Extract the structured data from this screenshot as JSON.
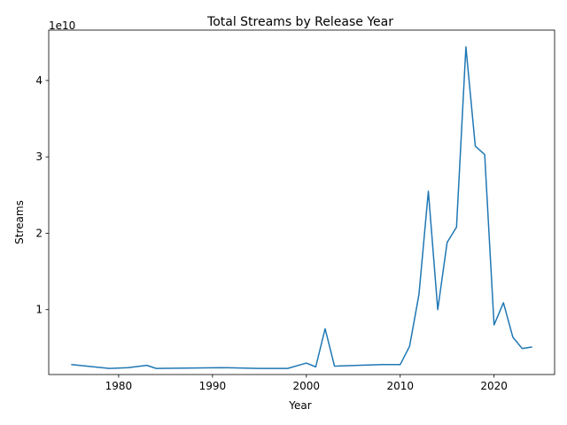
{
  "chart_data": {
    "type": "line",
    "title": "Total Streams by Release Year",
    "xlabel": "Year",
    "ylabel": "Streams",
    "y_offset_label": "1e10",
    "xlim": [
      1972.55,
      2026.45
    ],
    "ylim": [
      0.15,
      4.66
    ],
    "y_multiplier": 10000000000,
    "x_ticks": [
      1980,
      1990,
      2000,
      2010,
      2020
    ],
    "x_tick_labels": [
      "1980",
      "1990",
      "2000",
      "2010",
      "2020"
    ],
    "y_ticks": [
      1,
      2,
      3,
      4
    ],
    "y_tick_labels": [
      "1",
      "2",
      "3",
      "4"
    ],
    "grid": false,
    "line_color": "#1f77b4",
    "series": [
      {
        "x": [
          1975,
          1979,
          1981,
          1983,
          1984,
          1991,
          1995,
          1998,
          2000,
          2001,
          2002,
          2003,
          2008,
          2010,
          2011,
          2012,
          2013,
          2014,
          2015,
          2016,
          2017,
          2018,
          2019,
          2020,
          2021,
          2022,
          2023,
          2024
        ],
        "values": [
          0.28,
          0.23,
          0.24,
          0.27,
          0.23,
          0.24,
          0.23,
          0.23,
          0.3,
          0.25,
          0.75,
          0.26,
          0.28,
          0.28,
          0.52,
          1.2,
          2.55,
          1.0,
          1.88,
          2.08,
          4.44,
          3.14,
          3.03,
          0.8,
          1.09,
          0.64,
          0.49,
          0.51
        ]
      }
    ]
  }
}
